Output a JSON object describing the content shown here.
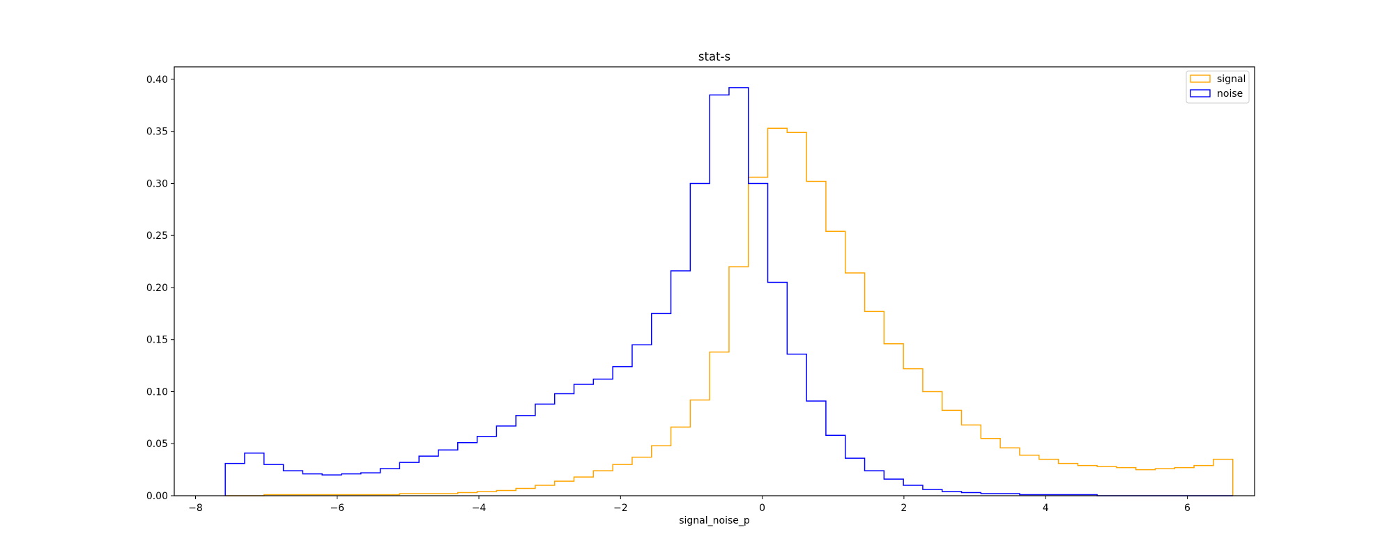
{
  "chart_data": {
    "type": "histogram-step",
    "title": "stat-s",
    "xlabel": "signal_noise_p",
    "ylabel": "",
    "xlim": [
      -8.3,
      6.95
    ],
    "ylim": [
      0,
      0.412
    ],
    "x_ticks": [
      -8,
      -6,
      -4,
      -2,
      0,
      2,
      4,
      6
    ],
    "x_tick_labels": [
      "−8",
      "−6",
      "−4",
      "−2",
      "0",
      "2",
      "4",
      "6"
    ],
    "y_ticks": [
      0.0,
      0.05,
      0.1,
      0.15,
      0.2,
      0.25,
      0.3,
      0.35,
      0.4
    ],
    "y_tick_labels": [
      "0.00",
      "0.05",
      "0.10",
      "0.15",
      "0.20",
      "0.25",
      "0.30",
      "0.35",
      "0.40"
    ],
    "grid": false,
    "legend_position": "upper-right",
    "bin_start": -7.58,
    "bin_width": 0.2735,
    "series": [
      {
        "name": "signal",
        "color": "#ffa500",
        "values": [
          0.0,
          0.0,
          0.001,
          0.001,
          0.001,
          0.001,
          0.001,
          0.001,
          0.001,
          0.002,
          0.002,
          0.002,
          0.003,
          0.004,
          0.005,
          0.007,
          0.01,
          0.014,
          0.018,
          0.024,
          0.03,
          0.037,
          0.048,
          0.066,
          0.092,
          0.138,
          0.22,
          0.306,
          0.353,
          0.349,
          0.302,
          0.254,
          0.214,
          0.177,
          0.146,
          0.122,
          0.1,
          0.082,
          0.068,
          0.055,
          0.046,
          0.039,
          0.035,
          0.031,
          0.029,
          0.028,
          0.027,
          0.025,
          0.026,
          0.027,
          0.029,
          0.035
        ]
      },
      {
        "name": "noise",
        "color": "#0000ff",
        "values": [
          0.031,
          0.041,
          0.03,
          0.024,
          0.021,
          0.02,
          0.021,
          0.022,
          0.026,
          0.032,
          0.038,
          0.044,
          0.051,
          0.057,
          0.067,
          0.077,
          0.088,
          0.098,
          0.107,
          0.112,
          0.124,
          0.145,
          0.175,
          0.216,
          0.3,
          0.385,
          0.392,
          0.3,
          0.205,
          0.136,
          0.091,
          0.058,
          0.036,
          0.024,
          0.016,
          0.01,
          0.006,
          0.004,
          0.003,
          0.002,
          0.002,
          0.001,
          0.001,
          0.001,
          0.001,
          0.0,
          0.0,
          0.0,
          0.0,
          0.0,
          0.0,
          0.0
        ]
      }
    ]
  }
}
